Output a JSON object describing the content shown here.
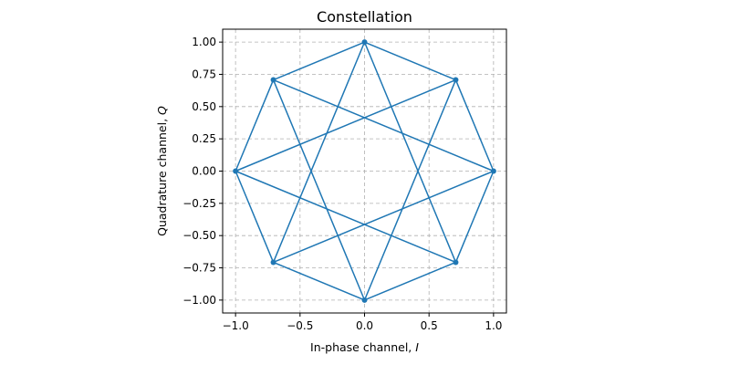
{
  "chart_data": {
    "type": "line",
    "title": "Constellation",
    "xlabel": "In-phase channel, ",
    "xlabel_var": "I",
    "ylabel": "Quadrature channel, ",
    "ylabel_var": "Q",
    "xlim": [
      -1.1,
      1.1
    ],
    "ylim": [
      -1.1,
      1.1
    ],
    "xticks": [
      -1.0,
      -0.5,
      0.0,
      0.5,
      1.0
    ],
    "xtick_labels": [
      "−1.0",
      "−0.5",
      "0.0",
      "0.5",
      "1.0"
    ],
    "yticks": [
      -1.0,
      -0.75,
      -0.5,
      -0.25,
      0.0,
      0.25,
      0.5,
      0.75,
      1.0
    ],
    "ytick_labels": [
      "−1.00",
      "−0.75",
      "−0.50",
      "−0.25",
      "0.00",
      "0.25",
      "0.50",
      "0.75",
      "1.00"
    ],
    "grid": true,
    "color": "#1f77b4",
    "points": [
      {
        "x": 1.0,
        "y": 0.0
      },
      {
        "x": 0.707,
        "y": 0.707
      },
      {
        "x": 0.0,
        "y": 1.0
      },
      {
        "x": -0.707,
        "y": 0.707
      },
      {
        "x": -1.0,
        "y": 0.0
      },
      {
        "x": -0.707,
        "y": -0.707
      },
      {
        "x": 0.0,
        "y": -1.0
      },
      {
        "x": 0.707,
        "y": -0.707
      }
    ],
    "edges": [
      [
        0,
        1
      ],
      [
        1,
        2
      ],
      [
        2,
        3
      ],
      [
        3,
        4
      ],
      [
        4,
        5
      ],
      [
        5,
        6
      ],
      [
        6,
        7
      ],
      [
        7,
        0
      ],
      [
        0,
        3
      ],
      [
        3,
        6
      ],
      [
        6,
        1
      ],
      [
        1,
        4
      ],
      [
        4,
        7
      ],
      [
        7,
        2
      ],
      [
        2,
        5
      ],
      [
        5,
        0
      ]
    ]
  }
}
